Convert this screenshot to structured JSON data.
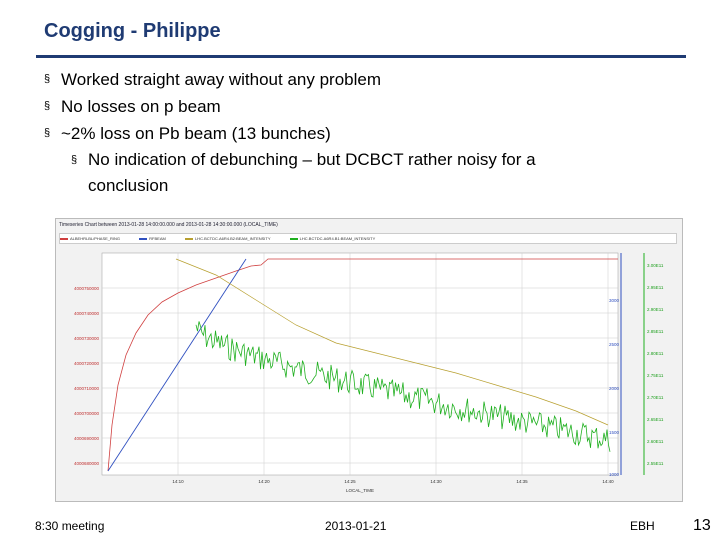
{
  "slide": {
    "title": "Cogging - Philippe",
    "bullets": [
      "Worked straight away without any problem",
      "No losses on p beam",
      "~2% loss on Pb beam (13 bunches)"
    ],
    "sub_bullet": {
      "line1": "No indication of debunching – but DCBCT rather noisy for a",
      "line2": "conclusion"
    },
    "bullet_marker": "§"
  },
  "footer": {
    "left": "8:30 meeting",
    "center": "2013-01-21",
    "right": "EBH",
    "page": "13"
  },
  "screenshot": {
    "title": "Timeseries Chart between 2013-01-28 14:00:00.000 and 2013-01-28 14:30:00.000 (LOCAL_TIME)",
    "legend": [
      {
        "label": "ALBEHRLBL/PHASE_RING",
        "color": "#d04040"
      },
      {
        "label": "RFBEAM",
        "color": "#3050c0"
      },
      {
        "label": "LHC.BCTDC.A6R4.B2:BEAM_INTENSITY",
        "color": "#b8a030"
      },
      {
        "label": "LHC.BCTDC.A6R4.B1:BEAM_INTENSITY",
        "color": "#20b020"
      }
    ],
    "xlabel": "LOCAL_TIME",
    "x_ticks": [
      "14:10",
      "14:20",
      "14:25",
      "14:30",
      "14:35",
      "14:40"
    ],
    "left_ticks": [
      "4000750000",
      "4000740000",
      "4000730000",
      "4000720000",
      "4000710000",
      "4000700000",
      "4000690000",
      "4000680000"
    ],
    "mid_ticks": [
      "3000",
      "2500",
      "2000",
      "1500",
      "1000"
    ],
    "right_ticks": [
      "3.00E11",
      "2.95E11",
      "2.90E11",
      "2.85E11",
      "2.80E11",
      "2.75E11",
      "2.70E11",
      "2.65E11",
      "2.60E11",
      "2.55E11"
    ]
  }
}
